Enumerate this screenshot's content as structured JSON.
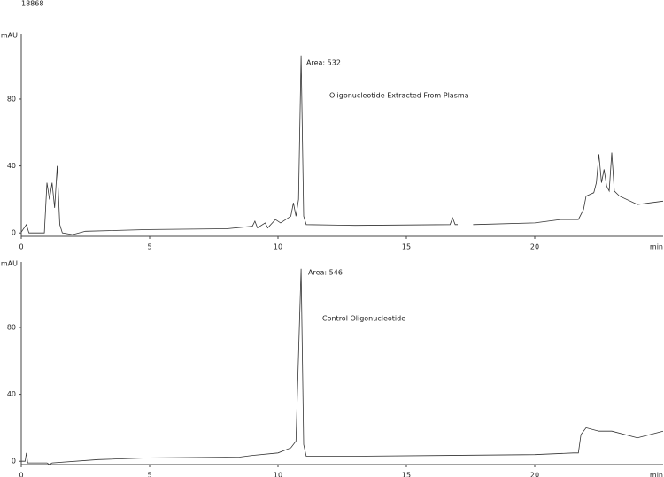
{
  "header": "18868",
  "chart_data": [
    {
      "type": "line",
      "ylabel": "mAU",
      "xlabel": "min",
      "annotations": [
        "Area: 532",
        "Oligonucleotide Extracted From Plasma"
      ],
      "x": [
        0,
        0.2,
        0.3,
        0.9,
        1.0,
        1.1,
        1.2,
        1.3,
        1.4,
        1.5,
        1.6,
        2,
        2.5,
        5,
        8,
        9,
        9.1,
        9.2,
        9.5,
        9.6,
        9.9,
        10.1,
        10.5,
        10.6,
        10.7,
        10.8,
        10.9,
        11.0,
        11.1,
        13,
        16.7,
        16.8,
        16.9,
        17,
        17.3,
        17.6,
        20,
        21,
        21.7,
        21.9,
        22,
        22.3,
        22.4,
        22.5,
        22.6,
        22.7,
        22.8,
        22.9,
        23,
        23.1,
        23.3,
        24,
        24.5,
        25
      ],
      "series": [
        {
          "color": "#333333",
          "values": [
            0.5,
            5,
            0,
            0,
            30,
            20,
            30,
            15,
            40,
            5,
            0,
            -1,
            1,
            2,
            2.5,
            4,
            7,
            3,
            6,
            3,
            8,
            6,
            10,
            18,
            10,
            20,
            106,
            10,
            5,
            4.5,
            5,
            9,
            5,
            5,
            null,
            5,
            6,
            8,
            8,
            14,
            22,
            24,
            30,
            47,
            30,
            38,
            28,
            25,
            48,
            25,
            22,
            17,
            18,
            19
          ]
        }
      ],
      "xlim": [
        0,
        25
      ],
      "ylim": [
        -2,
        117
      ],
      "xticks": [
        0,
        5,
        10,
        15,
        20
      ],
      "yticks": [
        0,
        40,
        80
      ]
    },
    {
      "type": "line",
      "ylabel": "mAU",
      "xlabel": "min",
      "annotations": [
        "Area: 546",
        "Control Oligonucleotide"
      ],
      "x": [
        0,
        0.15,
        0.2,
        0.25,
        1,
        1.1,
        1.2,
        3,
        5,
        8.5,
        9,
        10,
        10.5,
        10.7,
        10.9,
        11.0,
        11.1,
        13,
        20,
        21.5,
        21.7,
        21.8,
        22,
        22.5,
        23,
        24,
        25
      ],
      "series": [
        {
          "color": "#333333",
          "values": [
            0,
            0,
            5,
            -1,
            -1,
            -2,
            -1,
            1,
            2,
            2.5,
            3.5,
            5,
            8,
            12,
            115,
            10,
            3,
            3,
            4,
            5,
            5,
            16,
            20,
            18,
            18,
            14,
            18
          ]
        }
      ],
      "xlim": [
        0,
        25
      ],
      "ylim": [
        -2,
        117
      ],
      "xticks": [
        0,
        5,
        10,
        15,
        20
      ],
      "yticks": [
        0,
        40,
        80
      ]
    }
  ]
}
